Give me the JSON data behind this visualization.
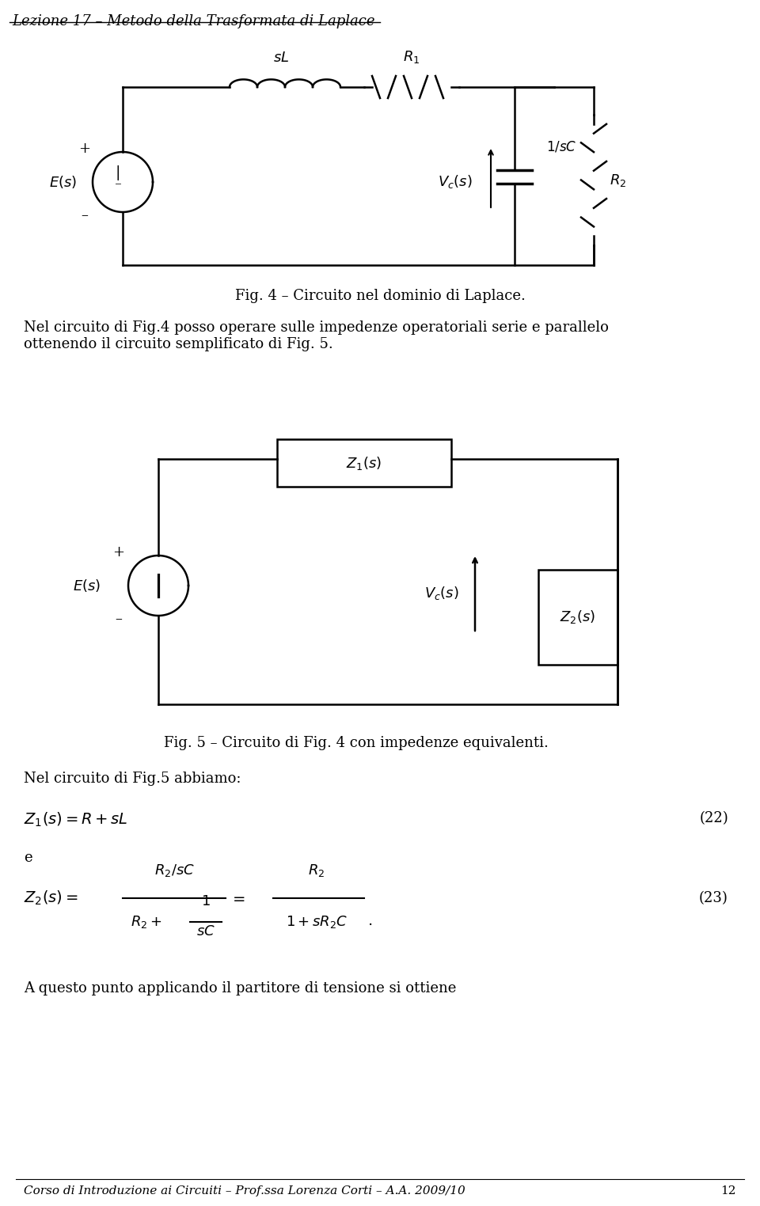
{
  "header_text": "Lezione 17 – Metodo della Trasformata di Laplace",
  "fig4_caption": "Fig. 4 – Circuito nel dominio di Laplace.",
  "fig5_caption": "Fig. 5 – Circuito di Fig. 4 con impedenze equivalenti.",
  "text_block1": "Nel circuito di Fig.4 posso operare sulle impedenze operatoriali serie e parallelo\nottenendo il circuito semplificato di Fig. 5.",
  "text_nel": "Nel circuito di Fig.5 abbiamo:",
  "text_e": "e",
  "eq22_label": "(22)",
  "eq23_label": "(23)",
  "text_bottom": "A questo punto applicando il partitore di tensione si ottiene",
  "footer_text": "Corso di Introduzione ai Circuiti – Prof.ssa Lorenza Corti – A.A. 2009/10",
  "page_num": "12",
  "bg_color": "#ffffff",
  "line_color": "#000000"
}
